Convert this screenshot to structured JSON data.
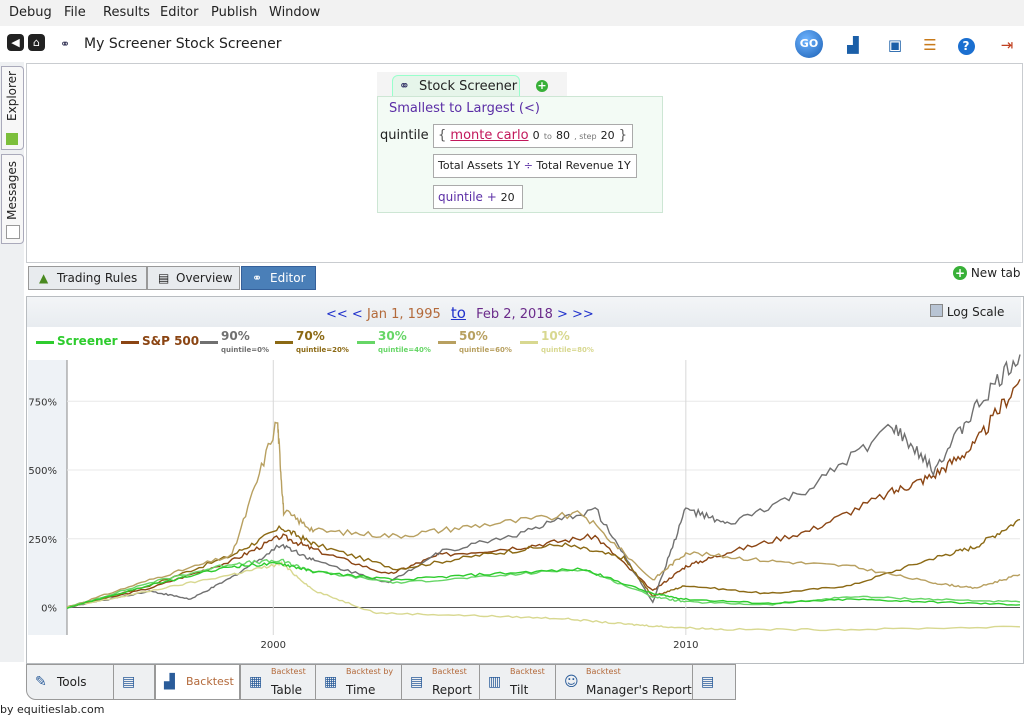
{
  "menu": [
    "Debug",
    "File",
    "Results",
    "Editor",
    "Publish",
    "Window"
  ],
  "window_title": "My Screener Stock Screener",
  "sidebar": {
    "explorer": "Explorer",
    "messages": "Messages"
  },
  "editor": {
    "tab_label": "Stock Screener",
    "sort_label": "Smallest to Largest (<)",
    "rule_name": "quintile",
    "monte_carlo": "monte carlo",
    "from": "0",
    "to_word": "to",
    "to": "80",
    "step_word": ", step",
    "step": "20",
    "brace_open": "{",
    "brace_close": "}",
    "colon": ":",
    "factor_a": "Total Assets 1Y",
    "divide": "÷",
    "factor_b": "Total Revenue 1Y",
    "plus_var": "quintile",
    "plus": "+",
    "plus_val": "20"
  },
  "view_tabs": [
    "Trading Rules",
    "Overview",
    "Editor"
  ],
  "new_tab": "New tab",
  "date_range": {
    "prev": "<< <",
    "start": "Jan 1, 1995",
    "to": "to",
    "end": "Feb 2, 2018",
    "next": "> >>"
  },
  "log_scale": "Log Scale",
  "legend": [
    {
      "name": "Screener",
      "sub": "",
      "color": "#2ecc2e"
    },
    {
      "name": "S&P 500",
      "sub": "",
      "color": "#8b4513"
    },
    {
      "name": "90%",
      "sub": "quintile=0%",
      "color": "#707070"
    },
    {
      "name": "70%",
      "sub": "quintile=20%",
      "color": "#8b6914"
    },
    {
      "name": "30%",
      "sub": "quintile=40%",
      "color": "#66d666"
    },
    {
      "name": "50%",
      "sub": "quintile=60%",
      "color": "#b8a060"
    },
    {
      "name": "10%",
      "sub": "quintile=80%",
      "color": "#d8d890"
    }
  ],
  "chart_data": {
    "type": "line",
    "y_ticks": [
      "750%",
      "500%",
      "250%",
      "0%"
    ],
    "x_ticks": [
      "2000",
      "2010"
    ],
    "ylim": [
      -100,
      900
    ],
    "xlim": [
      1995.0,
      2018.1
    ],
    "series": [
      {
        "name": "S&P 500",
        "x": [
          1995,
          1997,
          1999,
          2000.2,
          2001,
          2002.8,
          2004,
          2006,
          2007.8,
          2009.2,
          2010,
          2011,
          2013,
          2015,
          2016,
          2017,
          2018.1
        ],
        "y": [
          0,
          70,
          170,
          260,
          210,
          120,
          190,
          220,
          260,
          60,
          150,
          200,
          280,
          420,
          480,
          590,
          830
        ]
      },
      {
        "name": "90%",
        "x": [
          1995,
          1997,
          1998,
          1999,
          2000.2,
          2001,
          2002.8,
          2004,
          2006,
          2007.8,
          2009.2,
          2010,
          2011,
          2013,
          2015,
          2016,
          2017,
          2018.1
        ],
        "y": [
          0,
          60,
          30,
          110,
          230,
          170,
          90,
          200,
          270,
          360,
          20,
          360,
          300,
          430,
          660,
          500,
          720,
          920
        ]
      },
      {
        "name": "70%",
        "x": [
          1995,
          1997,
          1999,
          2000.2,
          2001,
          2003,
          2005,
          2007,
          2008.5,
          2009.2,
          2010,
          2012,
          2014,
          2016,
          2017,
          2018.1
        ],
        "y": [
          0,
          80,
          190,
          290,
          230,
          140,
          190,
          230,
          180,
          40,
          80,
          50,
          80,
          180,
          220,
          320
        ]
      },
      {
        "name": "30%",
        "x": [
          1995,
          1997,
          1999,
          2000.2,
          2001,
          2003,
          2005,
          2007.5,
          2009.2,
          2010,
          2012,
          2014,
          2016,
          2018.1
        ],
        "y": [
          0,
          90,
          160,
          170,
          130,
          90,
          110,
          140,
          40,
          20,
          10,
          40,
          30,
          20
        ]
      },
      {
        "name": "50%",
        "x": [
          1995,
          1997,
          1999,
          2000.1,
          2000.25,
          2001,
          2003,
          2005,
          2007.5,
          2009.2,
          2010,
          2012,
          2014,
          2016,
          2017,
          2018.1
        ],
        "y": [
          0,
          100,
          190,
          680,
          350,
          280,
          260,
          300,
          340,
          100,
          200,
          170,
          150,
          90,
          70,
          120
        ]
      },
      {
        "name": "10%",
        "x": [
          1995,
          1997,
          1999,
          2000.2,
          2001,
          2002.5,
          2005,
          2007,
          2008.5,
          2009.5,
          2011,
          2014,
          2018.1
        ],
        "y": [
          0,
          60,
          120,
          160,
          60,
          -20,
          -30,
          -40,
          -60,
          -70,
          -80,
          -80,
          -70
        ]
      },
      {
        "name": "Screener",
        "x": [
          1995,
          1997,
          1999,
          2000.2,
          2001,
          2003,
          2005,
          2007.5,
          2009.2,
          2010,
          2012,
          2014,
          2016,
          2018.1
        ],
        "y": [
          0,
          80,
          150,
          160,
          130,
          100,
          120,
          140,
          50,
          30,
          15,
          30,
          20,
          10
        ]
      }
    ]
  },
  "bottom_tabs": [
    {
      "small": "",
      "big": "Tools"
    },
    {
      "small": "",
      "big": ""
    },
    {
      "small": "",
      "big": "Backtest"
    },
    {
      "small": "Backtest",
      "big": "Table"
    },
    {
      "small": "Backtest by",
      "big": "Time"
    },
    {
      "small": "Backtest",
      "big": "Report"
    },
    {
      "small": "Backtest",
      "big": "Tilt"
    },
    {
      "small": "Backtest",
      "big": "Manager's Report"
    },
    {
      "small": "",
      "big": ""
    }
  ],
  "footer": "by equitieslab.com"
}
